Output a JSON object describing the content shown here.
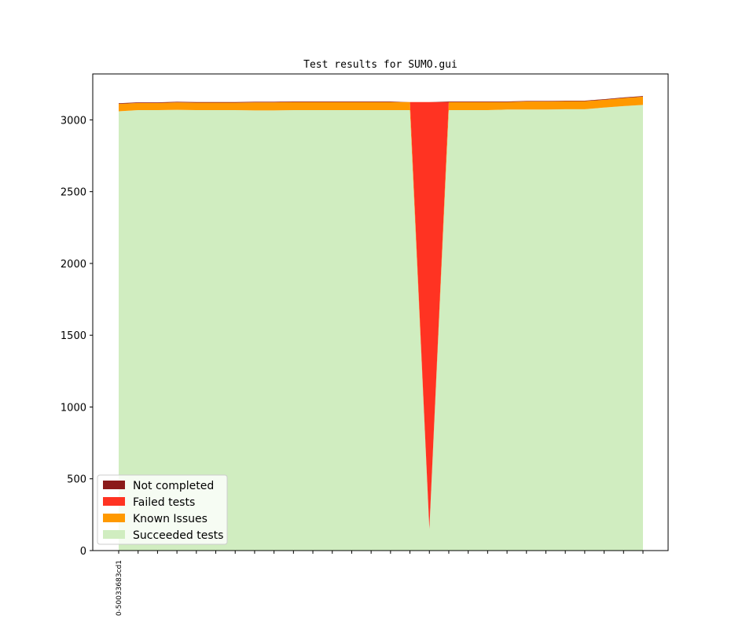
{
  "chart_data": {
    "type": "area",
    "stacked": true,
    "title": "Test results for SUMO.gui",
    "xlabel": "",
    "ylabel": "",
    "ylim": [
      0,
      3320
    ],
    "yticks": [
      0,
      500,
      1000,
      1500,
      2000,
      2500,
      3000
    ],
    "x_tick_labels": [
      "0-50033683cd1"
    ],
    "n_points": 28,
    "series": [
      {
        "name": "Succeeded tests",
        "color": "#d0edc0",
        "values": [
          3060,
          3068,
          3068,
          3070,
          3068,
          3068,
          3068,
          3066,
          3066,
          3068,
          3068,
          3068,
          3068,
          3068,
          3068,
          3068,
          150,
          3068,
          3068,
          3068,
          3072,
          3072,
          3072,
          3074,
          3074,
          3086,
          3096,
          3104
        ]
      },
      {
        "name": "Known Issues",
        "color": "#ff9900",
        "values": [
          52,
          50,
          50,
          52,
          52,
          52,
          52,
          56,
          56,
          56,
          56,
          56,
          56,
          56,
          56,
          56,
          0,
          56,
          56,
          56,
          52,
          56,
          56,
          56,
          56,
          54,
          56,
          58
        ]
      },
      {
        "name": "Failed tests",
        "color": "#ff3322",
        "values": [
          0,
          0,
          0,
          0,
          0,
          0,
          0,
          0,
          0,
          0,
          0,
          0,
          0,
          0,
          0,
          0,
          2974,
          0,
          0,
          0,
          0,
          0,
          0,
          0,
          0,
          0,
          0,
          0
        ]
      },
      {
        "name": "Not completed",
        "color": "#8b1a1a",
        "values": [
          4,
          4,
          4,
          4,
          4,
          4,
          4,
          4,
          4,
          4,
          4,
          4,
          4,
          4,
          4,
          0,
          0,
          4,
          4,
          4,
          4,
          4,
          4,
          4,
          4,
          4,
          4,
          4
        ]
      }
    ],
    "legend_order": [
      "Not completed",
      "Failed tests",
      "Known Issues",
      "Succeeded tests"
    ],
    "legend_position": "lower-left",
    "grid": false
  }
}
